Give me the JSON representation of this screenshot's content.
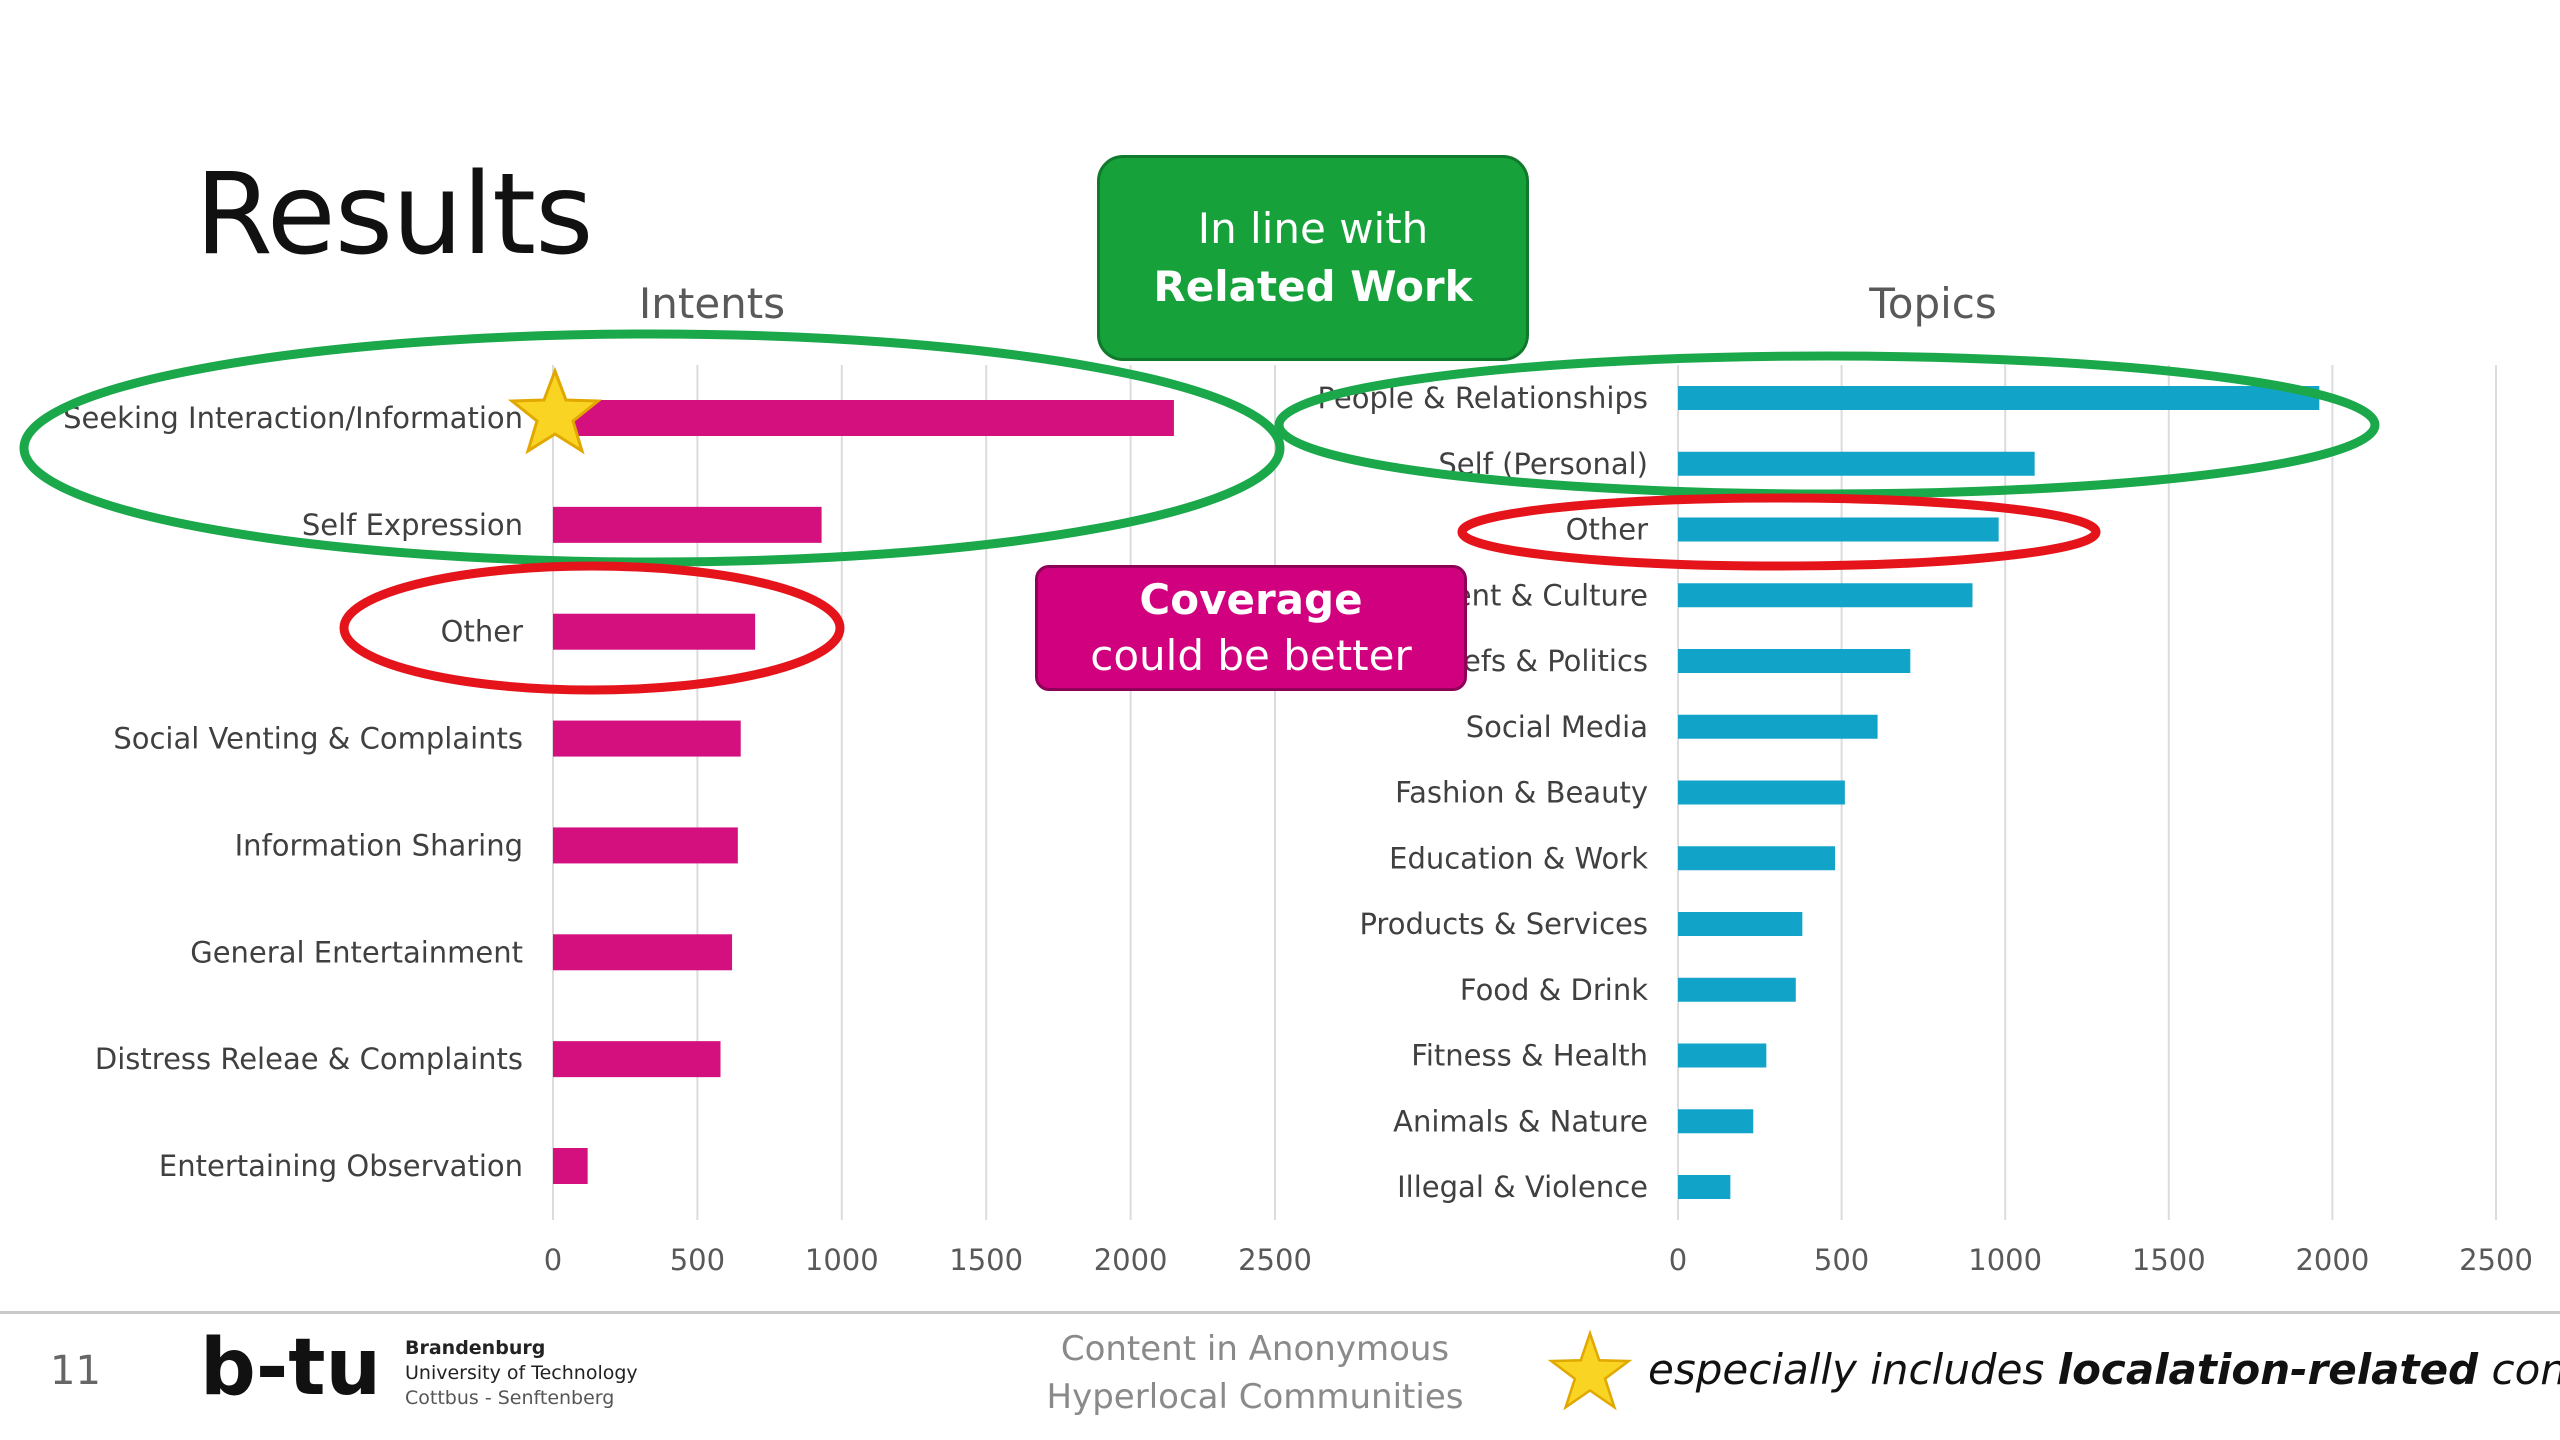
{
  "slide": {
    "title": "Results",
    "page_number": "11",
    "footer_title_line1": "Content in Anonymous",
    "footer_title_line2": "Hyperlocal Communities",
    "institution_line1": "Brandenburg",
    "institution_line2": "University of Technology",
    "institution_line3": "Cottbus - Senftenberg",
    "logo_text": "b-tu",
    "footnote_prefix": "especially includes ",
    "footnote_bold": "localation-related",
    "footnote_suffix": " content",
    "footnote_icon": "star-icon"
  },
  "callouts": {
    "green": {
      "line1": "In line with",
      "line2": "Related Work",
      "color": "#16a13a"
    },
    "magenta": {
      "line1": "Coverage",
      "line2": "could be better",
      "color": "#d1007e"
    }
  },
  "highlight_colors": {
    "green": "#1aa84a",
    "red": "#e5141b",
    "star": "#f9d423"
  },
  "chart_data": [
    {
      "type": "bar",
      "orientation": "horizontal",
      "title": "Intents",
      "color": "#d4107f",
      "categories": [
        "Seeking Interaction/Information",
        "Self Expression",
        "Other",
        "Social Venting & Complaints",
        "Information Sharing",
        "General Entertainment",
        "Distress Releae & Complaints",
        "Entertaining Observation"
      ],
      "values": [
        2150,
        930,
        700,
        650,
        640,
        620,
        580,
        120
      ],
      "xlim": [
        0,
        2500
      ],
      "xticks": [
        0,
        500,
        1000,
        1500,
        2000,
        2500
      ],
      "grid": true,
      "starred_category": "Seeking Interaction/Information"
    },
    {
      "type": "bar",
      "orientation": "horizontal",
      "title": "Topics",
      "color": "#12a3c9",
      "categories": [
        "People & Relationships",
        "Self (Personal)",
        "Other",
        "Entertainment & Culture",
        "Beliefs & Politics",
        "Social Media",
        "Fashion & Beauty",
        "Education & Work",
        "Products & Services",
        "Food & Drink",
        "Fitness & Health",
        "Animals & Nature",
        "Illegal & Violence"
      ],
      "values": [
        1960,
        1090,
        980,
        900,
        710,
        610,
        510,
        480,
        380,
        360,
        270,
        230,
        160
      ],
      "xlim": [
        0,
        2500
      ],
      "xticks": [
        0,
        500,
        1000,
        1500,
        2000,
        2500
      ],
      "grid": true
    }
  ]
}
